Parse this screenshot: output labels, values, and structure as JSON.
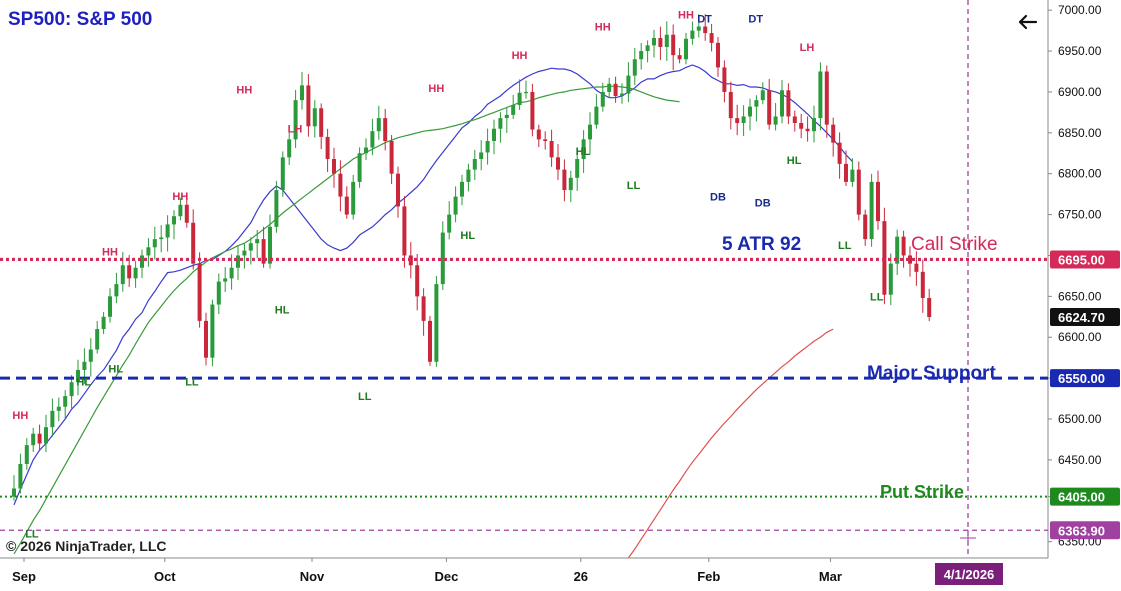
{
  "title": "SP500: S&P 500",
  "copyright": "© 2026 NinjaTrader, LLC",
  "nav_back_icon": "arrow-left-icon",
  "colors": {
    "title": "#1f1fbf",
    "up_candle": "#2a9a3a",
    "down_candle": "#c8283a",
    "ma_fast": "#3a3ad0",
    "ma_mid": "#3a9a3a",
    "ma_slow": "#e05050",
    "call_strike": "#d42a5a",
    "major_support": "#1a2ab0",
    "put_strike": "#1e8a1e",
    "vertical_marker": "#a040a0",
    "label_high": "#d42a5a",
    "label_low": "#1e7a1e",
    "label_dt": "#1a2a8a"
  },
  "chart_data": {
    "type": "candlestick",
    "y_axis": {
      "range": [
        6330,
        7010
      ],
      "ticks": [
        "7000.00",
        "6950.00",
        "6900.00",
        "6850.00",
        "6800.00",
        "6750.00",
        "6700.00",
        "6650.00",
        "6600.00",
        "6550.00",
        "6500.00",
        "6450.00",
        "6405.00",
        "6350.00"
      ]
    },
    "x_axis": {
      "labels": [
        {
          "text": "Sep",
          "bar": 0
        },
        {
          "text": "Oct",
          "bar": 22
        },
        {
          "text": "Nov",
          "bar": 45
        },
        {
          "text": "Dec",
          "bar": 66
        },
        {
          "text": "26",
          "bar": 87
        },
        {
          "text": "Feb",
          "bar": 107
        },
        {
          "text": "Mar",
          "bar": 126
        }
      ],
      "highlight_label": "4/1/2026"
    },
    "price_tags": [
      {
        "value": 6695.0,
        "text": "6695.00",
        "style": "call"
      },
      {
        "value": 6624.7,
        "text": "6624.70",
        "style": "last"
      },
      {
        "value": 6550.0,
        "text": "6550.00",
        "style": "support"
      },
      {
        "value": 6405.0,
        "text": "6405.00",
        "style": "put"
      },
      {
        "value": 6363.9,
        "text": "6363.90",
        "style": "marker"
      }
    ],
    "levels": [
      {
        "name": "Call Strike",
        "value": 6695
      },
      {
        "name": "Major Support",
        "value": 6550
      },
      {
        "name": "Put Strike",
        "value": 6405
      }
    ],
    "annotation_text": "5 ATR 92",
    "closes": [
      6415,
      6445,
      6468,
      6482,
      6470,
      6490,
      6510,
      6515,
      6528,
      6545,
      6560,
      6570,
      6585,
      6610,
      6625,
      6650,
      6665,
      6688,
      6672,
      6685,
      6700,
      6710,
      6720,
      6722,
      6738,
      6748,
      6762,
      6740,
      6690,
      6620,
      6575,
      6640,
      6668,
      6672,
      6685,
      6700,
      6706,
      6715,
      6720,
      6690,
      6735,
      6780,
      6820,
      6842,
      6890,
      6908,
      6858,
      6880,
      6845,
      6818,
      6800,
      6772,
      6750,
      6790,
      6825,
      6832,
      6852,
      6868,
      6840,
      6800,
      6760,
      6700,
      6688,
      6650,
      6620,
      6570,
      6665,
      6728,
      6750,
      6772,
      6790,
      6805,
      6818,
      6826,
      6840,
      6855,
      6868,
      6872,
      6884,
      6899,
      6900,
      6854,
      6842,
      6840,
      6820,
      6805,
      6780,
      6795,
      6818,
      6842,
      6860,
      6882,
      6900,
      6910,
      6895,
      6898,
      6920,
      6940,
      6950,
      6957,
      6966,
      6955,
      6970,
      6945,
      6940,
      6965,
      6975,
      6980,
      6972,
      6960,
      6930,
      6900,
      6868,
      6862,
      6870,
      6882,
      6890,
      6902,
      6860,
      6870,
      6902,
      6870,
      6862,
      6855,
      6852,
      6868,
      6925,
      6860,
      6838,
      6812,
      6790,
      6805,
      6750,
      6720,
      6790,
      6742,
      6652,
      6690,
      6723,
      6700,
      6690,
      6680,
      6648,
      6624.7
    ],
    "ma_fast": [
      6395,
      6414,
      6432,
      6450,
      6462,
      6470,
      6480,
      6490,
      6500,
      6512,
      6520,
      6531,
      6542,
      6552,
      6560,
      6572,
      6584,
      6600,
      6610,
      6622,
      6630,
      6645,
      6656,
      6668,
      6679,
      6680,
      6682,
      6685,
      6688,
      6690,
      6694,
      6695,
      6700,
      6705,
      6712,
      6720,
      6730,
      6740,
      6755,
      6768,
      6778,
      6785,
      6780,
      6770,
      6760,
      6750,
      6740,
      6730,
      6720,
      6713,
      6709,
      6706,
      6709,
      6716,
      6725,
      6730,
      6735,
      6742,
      6750,
      6756,
      6764,
      6770,
      6777,
      6784,
      6793,
      6805,
      6816,
      6826,
      6836,
      6846,
      6856,
      6862,
      6870,
      6876,
      6885,
      6890,
      6895,
      6902,
      6908,
      6913,
      6918,
      6922,
      6925,
      6927,
      6929,
      6928,
      6928,
      6926,
      6922,
      6916,
      6910,
      6902,
      6897,
      6893,
      6893,
      6895,
      6900,
      6905,
      6912,
      6916,
      6916,
      6920,
      6923,
      6925,
      6926,
      6930,
      6933,
      6930,
      6925,
      6918,
      6914,
      6910,
      6910,
      6908,
      6909,
      6906,
      6906,
      6905,
      6902,
      6900,
      6897,
      6893,
      6887,
      6880,
      6873,
      6865,
      6858,
      6850,
      6842,
      6833,
      6823,
      6815
    ],
    "ma_mid": [
      6335,
      6348,
      6362,
      6376,
      6388,
      6402,
      6416,
      6430,
      6444,
      6458,
      6472,
      6486,
      6500,
      6514,
      6527,
      6540,
      6553,
      6566,
      6578,
      6592,
      6605,
      6618,
      6628,
      6638,
      6648,
      6657,
      6665,
      6672,
      6680,
      6686,
      6692,
      6697,
      6701,
      6705,
      6708,
      6712,
      6715,
      6720,
      6726,
      6732,
      6738,
      6745,
      6752,
      6758,
      6764,
      6770,
      6776,
      6782,
      6788,
      6794,
      6800,
      6806,
      6812,
      6818,
      6822,
      6826,
      6830,
      6834,
      6838,
      6841,
      6844,
      6846,
      6848,
      6850,
      6852,
      6853,
      6854,
      6855,
      6857,
      6859,
      6861,
      6864,
      6866,
      6869,
      6872,
      6875,
      6878,
      6881,
      6884,
      6887,
      6888,
      6890,
      6893,
      6895,
      6897,
      6899,
      6900,
      6902,
      6903,
      6904,
      6905,
      6906,
      6906,
      6907,
      6907,
      6906,
      6905,
      6903,
      6900,
      6897,
      6894,
      6892,
      6890,
      6889,
      6888
    ],
    "ma_slow": [
      6330,
      6341,
      6353,
      6365,
      6377,
      6389,
      6401,
      6413,
      6424,
      6436,
      6447,
      6457,
      6467,
      6477,
      6486,
      6495,
      6503,
      6512,
      6520,
      6528,
      6536,
      6543,
      6550,
      6557,
      6564,
      6570,
      6577,
      6583,
      6589,
      6595,
      6600,
      6606,
      6610
    ],
    "swing_labels": [
      {
        "text": "HH",
        "bar": 1,
        "value": 6505,
        "kind": "high"
      },
      {
        "text": "LL",
        "bar": 3,
        "value": 6360,
        "kind": "low"
      },
      {
        "text": "HL",
        "bar": 11,
        "value": 6546,
        "kind": "low"
      },
      {
        "text": "HL",
        "bar": 16,
        "value": 6562,
        "kind": "low"
      },
      {
        "text": "HH",
        "bar": 15,
        "value": 6705,
        "kind": "high"
      },
      {
        "text": "HH",
        "bar": 26,
        "value": 6773,
        "kind": "high"
      },
      {
        "text": "LL",
        "bar": 28,
        "value": 6546,
        "kind": "low"
      },
      {
        "text": "HH",
        "bar": 36,
        "value": 6903,
        "kind": "high"
      },
      {
        "text": "LH",
        "bar": 44,
        "value": 6855,
        "kind": "high"
      },
      {
        "text": "HL",
        "bar": 42,
        "value": 6634,
        "kind": "low"
      },
      {
        "text": "LL",
        "bar": 55,
        "value": 6528,
        "kind": "low"
      },
      {
        "text": "HH",
        "bar": 66,
        "value": 6905,
        "kind": "high"
      },
      {
        "text": "HL",
        "bar": 71,
        "value": 6725,
        "kind": "low"
      },
      {
        "text": "HH",
        "bar": 79,
        "value": 6945,
        "kind": "high"
      },
      {
        "text": "HL",
        "bar": 89,
        "value": 6828,
        "kind": "low"
      },
      {
        "text": "HH",
        "bar": 92,
        "value": 6980,
        "kind": "high"
      },
      {
        "text": "LL",
        "bar": 97,
        "value": 6786,
        "kind": "low"
      },
      {
        "text": "HH",
        "bar": 105,
        "value": 6995,
        "kind": "high"
      },
      {
        "text": "DT",
        "bar": 108,
        "value": 6990,
        "kind": "dt"
      },
      {
        "text": "DB",
        "bar": 110,
        "value": 6772,
        "kind": "dt"
      },
      {
        "text": "DT",
        "bar": 116,
        "value": 6990,
        "kind": "dt"
      },
      {
        "text": "DB",
        "bar": 117,
        "value": 6765,
        "kind": "dt"
      },
      {
        "text": "LH",
        "bar": 124,
        "value": 6955,
        "kind": "high"
      },
      {
        "text": "HL",
        "bar": 122,
        "value": 6817,
        "kind": "low"
      },
      {
        "text": "LL",
        "bar": 130,
        "value": 6713,
        "kind": "low"
      },
      {
        "text": "LL",
        "bar": 135,
        "value": 6650,
        "kind": "low"
      }
    ]
  }
}
